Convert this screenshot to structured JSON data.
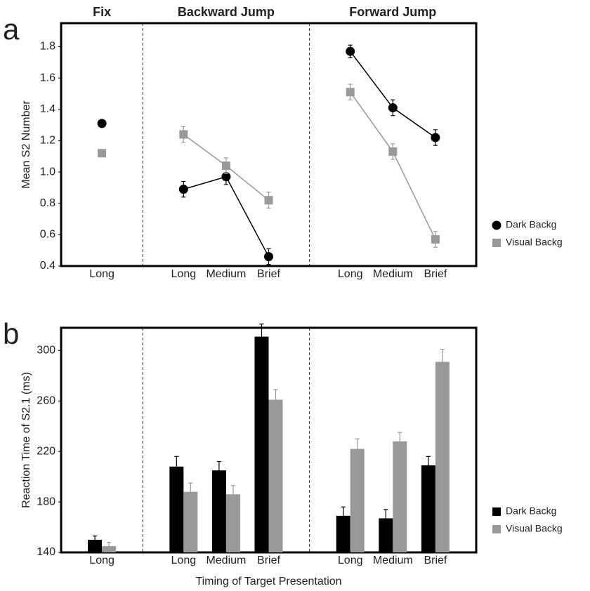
{
  "chart_data": [
    {
      "type": "line",
      "panel_label": "a",
      "y_label": "Mean S2 Number",
      "groups": [
        {
          "name": "Fix",
          "categories": [
            "Long"
          ]
        },
        {
          "name": "Backward Jump",
          "categories": [
            "Long",
            "Medium",
            "Brief"
          ]
        },
        {
          "name": "Forward Jump",
          "categories": [
            "Long",
            "Medium",
            "Brief"
          ]
        }
      ],
      "series": [
        {
          "name": "Dark Backg",
          "color": "#000000",
          "marker": "circle",
          "values": [
            1.31,
            0.89,
            0.97,
            0.46,
            1.77,
            1.41,
            1.22
          ],
          "errors": [
            0.02,
            0.05,
            0.05,
            0.05,
            0.04,
            0.05,
            0.05
          ]
        },
        {
          "name": "Visual Backg",
          "color": "#999999",
          "marker": "square",
          "values": [
            1.12,
            1.24,
            1.04,
            0.82,
            1.51,
            1.13,
            0.57
          ],
          "errors": [
            0.02,
            0.05,
            0.05,
            0.05,
            0.05,
            0.05,
            0.05
          ]
        }
      ],
      "ylim": [
        0.4,
        1.95
      ],
      "yticks": [
        0.4,
        0.6,
        0.8,
        {
          "value": 1,
          "label": "1.0"
        },
        1.2,
        1.4,
        1.6,
        1.8
      ],
      "legend": "right"
    },
    {
      "type": "bar",
      "panel_label": "b",
      "y_label": "Reaction Time of S2.1 (ms)",
      "x_label": "Timing of Target Presentation",
      "groups": [
        {
          "categories": [
            "Long"
          ]
        },
        {
          "categories": [
            "Long",
            "Medium",
            "Brief"
          ]
        },
        {
          "categories": [
            "Long",
            "Medium",
            "Brief"
          ]
        }
      ],
      "series": [
        {
          "name": "Dark Backg",
          "color": "#000000",
          "marker": "square",
          "values": [
            150,
            208,
            205,
            311,
            169,
            167,
            209
          ],
          "errors": [
            3,
            8,
            7,
            10,
            7,
            7,
            7
          ]
        },
        {
          "name": "Visual Backg",
          "color": "#999999",
          "marker": "square",
          "values": [
            145,
            188,
            186,
            261,
            222,
            228,
            291
          ],
          "errors": [
            3,
            7,
            7,
            8,
            8,
            7,
            10
          ]
        }
      ],
      "ylim": [
        140,
        318
      ],
      "yticks": [
        140,
        180,
        220,
        260,
        300
      ],
      "legend": "right"
    }
  ]
}
